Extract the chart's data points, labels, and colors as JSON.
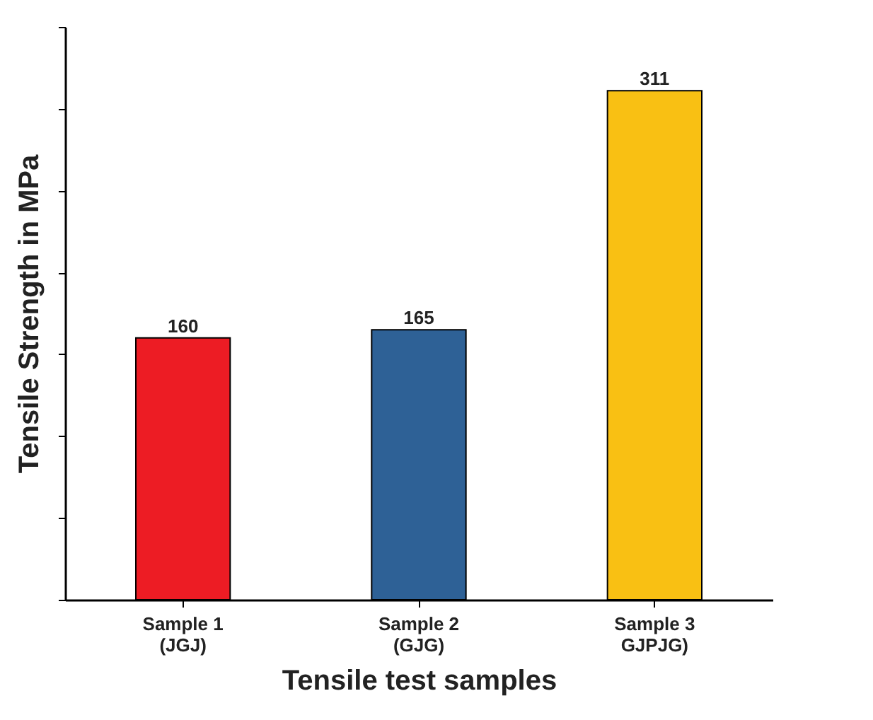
{
  "chart_data": {
    "type": "bar",
    "xlabel": "Tensile test samples",
    "ylabel": "Tensile Strength in MPa",
    "categories": [
      "Sample 1\n(JGJ)",
      "Sample 2\n(GJG)",
      "Sample 3\nGJPJG)"
    ],
    "values": [
      160,
      165,
      311
    ],
    "colors": [
      "#ed1c24",
      "#2e6196",
      "#f9c013"
    ],
    "ylim": [
      0,
      350
    ],
    "yticks": [
      0,
      50,
      100,
      150,
      200,
      250,
      300,
      350
    ],
    "tick_labels": "x",
    "data_labels": true,
    "grid": false
  }
}
